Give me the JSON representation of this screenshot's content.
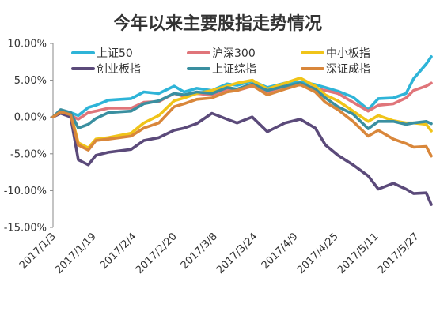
{
  "chart_data": {
    "type": "line",
    "title": "今年以来主要股指走势情况",
    "xlabel": "",
    "ylabel": "",
    "ylim": [
      -15,
      10
    ],
    "ytick_values": [
      10,
      5,
      0,
      -5,
      -10,
      -15
    ],
    "ytick_labels": [
      "10.00%",
      "5.00%",
      "0.00%",
      "-5.00%",
      "-10.00%",
      "-15.00%"
    ],
    "x_range": [
      "2017-01-03",
      "2017-06-02"
    ],
    "xtick_labels": [
      "2017/1/3",
      "2017/1/19",
      "2017/2/4",
      "2017/2/20",
      "2017/3/8",
      "2017/3/24",
      "2017/4/9",
      "2017/4/25",
      "2017/5/11",
      "2017/5/27"
    ],
    "xtick_dates": [
      "2017-01-03",
      "2017-01-19",
      "2017-02-04",
      "2017-02-20",
      "2017-03-08",
      "2017-03-24",
      "2017-04-09",
      "2017-04-25",
      "2017-05-11",
      "2017-05-27"
    ],
    "grid": false,
    "legend_position": "top",
    "series": [
      {
        "name": "上证50",
        "color": "#2eb4d8",
        "x": [
          "2017-01-03",
          "2017-01-06",
          "2017-01-10",
          "2017-01-13",
          "2017-01-17",
          "2017-01-20",
          "2017-01-25",
          "2017-02-03",
          "2017-02-08",
          "2017-02-14",
          "2017-02-20",
          "2017-02-24",
          "2017-03-01",
          "2017-03-07",
          "2017-03-13",
          "2017-03-17",
          "2017-03-23",
          "2017-03-29",
          "2017-04-05",
          "2017-04-11",
          "2017-04-17",
          "2017-04-21",
          "2017-04-26",
          "2017-05-02",
          "2017-05-08",
          "2017-05-12",
          "2017-05-18",
          "2017-05-23",
          "2017-05-26",
          "2017-05-31",
          "2017-06-02"
        ],
        "y": [
          0.0,
          0.8,
          0.6,
          0.2,
          1.3,
          1.6,
          2.3,
          2.5,
          3.4,
          3.2,
          4.2,
          3.4,
          3.9,
          3.6,
          4.5,
          4.3,
          4.9,
          4.0,
          4.6,
          4.8,
          4.4,
          4.0,
          3.5,
          2.7,
          1.0,
          2.5,
          2.6,
          3.2,
          5.2,
          7.2,
          8.2
        ]
      },
      {
        "name": "沪深300",
        "color": "#e0757a",
        "x": [
          "2017-01-03",
          "2017-01-06",
          "2017-01-10",
          "2017-01-13",
          "2017-01-17",
          "2017-01-20",
          "2017-01-25",
          "2017-02-03",
          "2017-02-08",
          "2017-02-14",
          "2017-02-20",
          "2017-02-24",
          "2017-03-01",
          "2017-03-07",
          "2017-03-13",
          "2017-03-17",
          "2017-03-23",
          "2017-03-29",
          "2017-04-05",
          "2017-04-11",
          "2017-04-17",
          "2017-04-21",
          "2017-04-26",
          "2017-05-02",
          "2017-05-08",
          "2017-05-12",
          "2017-05-18",
          "2017-05-23",
          "2017-05-26",
          "2017-05-31",
          "2017-06-02"
        ],
        "y": [
          0.0,
          0.6,
          0.2,
          -0.3,
          0.6,
          0.8,
          1.2,
          1.2,
          2.0,
          2.1,
          3.2,
          2.8,
          3.2,
          3.0,
          3.8,
          3.6,
          4.2,
          3.4,
          4.2,
          4.5,
          3.9,
          3.6,
          3.2,
          2.0,
          0.8,
          1.6,
          1.8,
          2.6,
          3.6,
          4.2,
          4.6
        ]
      },
      {
        "name": "中小板指",
        "color": "#f0c419",
        "x": [
          "2017-01-03",
          "2017-01-06",
          "2017-01-10",
          "2017-01-13",
          "2017-01-17",
          "2017-01-20",
          "2017-01-25",
          "2017-02-03",
          "2017-02-08",
          "2017-02-14",
          "2017-02-20",
          "2017-02-24",
          "2017-03-01",
          "2017-03-07",
          "2017-03-13",
          "2017-03-17",
          "2017-03-23",
          "2017-03-29",
          "2017-04-05",
          "2017-04-11",
          "2017-04-17",
          "2017-04-21",
          "2017-04-26",
          "2017-05-02",
          "2017-05-08",
          "2017-05-12",
          "2017-05-18",
          "2017-05-23",
          "2017-05-26",
          "2017-05-31",
          "2017-06-02"
        ],
        "y": [
          0.0,
          0.8,
          0.5,
          -3.5,
          -4.2,
          -3.0,
          -2.8,
          -2.2,
          -0.8,
          0.2,
          2.2,
          2.6,
          3.2,
          3.6,
          4.2,
          4.6,
          5.0,
          3.8,
          4.6,
          5.3,
          4.2,
          3.0,
          2.2,
          0.8,
          -0.6,
          0.2,
          -0.5,
          -0.8,
          -0.8,
          -1.0,
          -1.9
        ]
      },
      {
        "name": "创业板指",
        "color": "#5b4a7a",
        "x": [
          "2017-01-03",
          "2017-01-06",
          "2017-01-10",
          "2017-01-13",
          "2017-01-17",
          "2017-01-20",
          "2017-01-25",
          "2017-02-03",
          "2017-02-08",
          "2017-02-14",
          "2017-02-20",
          "2017-02-24",
          "2017-03-01",
          "2017-03-07",
          "2017-03-13",
          "2017-03-17",
          "2017-03-23",
          "2017-03-29",
          "2017-04-05",
          "2017-04-11",
          "2017-04-17",
          "2017-04-21",
          "2017-04-26",
          "2017-05-02",
          "2017-05-08",
          "2017-05-12",
          "2017-05-18",
          "2017-05-23",
          "2017-05-26",
          "2017-05-31",
          "2017-06-02"
        ],
        "y": [
          0.0,
          0.5,
          0.0,
          -5.8,
          -6.5,
          -5.2,
          -4.8,
          -4.4,
          -3.2,
          -2.8,
          -1.8,
          -1.5,
          -0.9,
          0.5,
          -0.3,
          -0.8,
          0.0,
          -2.0,
          -0.8,
          -0.3,
          -1.5,
          -3.8,
          -5.2,
          -6.5,
          -8.0,
          -9.8,
          -9.0,
          -9.8,
          -10.4,
          -10.3,
          -11.9
        ]
      },
      {
        "name": "上证综指",
        "color": "#3a8fa0",
        "x": [
          "2017-01-03",
          "2017-01-06",
          "2017-01-10",
          "2017-01-13",
          "2017-01-17",
          "2017-01-20",
          "2017-01-25",
          "2017-02-03",
          "2017-02-08",
          "2017-02-14",
          "2017-02-20",
          "2017-02-24",
          "2017-03-01",
          "2017-03-07",
          "2017-03-13",
          "2017-03-17",
          "2017-03-23",
          "2017-03-29",
          "2017-04-05",
          "2017-04-11",
          "2017-04-17",
          "2017-04-21",
          "2017-04-26",
          "2017-05-02",
          "2017-05-08",
          "2017-05-12",
          "2017-05-18",
          "2017-05-23",
          "2017-05-26",
          "2017-05-31",
          "2017-06-02"
        ],
        "y": [
          0.0,
          1.0,
          0.6,
          -1.5,
          -1.0,
          -0.2,
          0.6,
          0.8,
          1.8,
          2.2,
          3.2,
          3.0,
          3.4,
          3.2,
          4.0,
          3.8,
          4.5,
          3.6,
          4.2,
          4.6,
          3.8,
          2.6,
          1.4,
          0.4,
          -1.6,
          -0.6,
          -0.6,
          -1.0,
          -0.8,
          -0.6,
          -0.9
        ]
      },
      {
        "name": "深证成指",
        "color": "#d9873b",
        "x": [
          "2017-01-03",
          "2017-01-06",
          "2017-01-10",
          "2017-01-13",
          "2017-01-17",
          "2017-01-20",
          "2017-01-25",
          "2017-02-03",
          "2017-02-08",
          "2017-02-14",
          "2017-02-20",
          "2017-02-24",
          "2017-03-01",
          "2017-03-07",
          "2017-03-13",
          "2017-03-17",
          "2017-03-23",
          "2017-03-29",
          "2017-04-05",
          "2017-04-11",
          "2017-04-17",
          "2017-04-21",
          "2017-04-26",
          "2017-05-02",
          "2017-05-08",
          "2017-05-12",
          "2017-05-18",
          "2017-05-23",
          "2017-05-26",
          "2017-05-31",
          "2017-06-02"
        ],
        "y": [
          0.0,
          0.7,
          0.3,
          -3.8,
          -4.5,
          -3.2,
          -3.0,
          -2.6,
          -1.5,
          -0.8,
          1.4,
          1.8,
          2.4,
          2.6,
          3.4,
          3.6,
          4.3,
          3.0,
          3.8,
          4.4,
          3.4,
          2.0,
          1.0,
          -0.6,
          -2.6,
          -1.8,
          -3.0,
          -3.6,
          -4.1,
          -4.0,
          -5.3
        ]
      }
    ]
  }
}
